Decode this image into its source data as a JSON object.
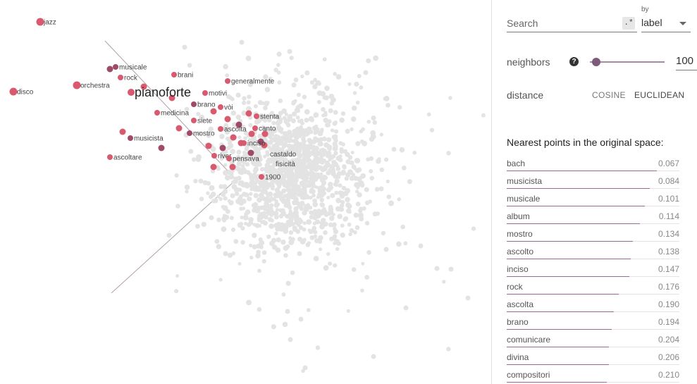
{
  "projection": {
    "highlight_label": "pianoforte",
    "labels": [
      "jazz",
      "musicale",
      "rock",
      "brani",
      "generalmente",
      "orchestra",
      "disco",
      "motivi",
      "brano",
      "vòi",
      "medicina",
      "siete",
      "stenta",
      "ascolta",
      "canto",
      "mostro",
      "musicista",
      "inciso",
      "castaldo",
      "fisicità",
      "river",
      "pensava",
      "ascoltare",
      "1900"
    ],
    "colors": {
      "neighbor": "#d9596e",
      "neighbor_dark": "#a04a6a",
      "background_point": "#e3e3e3",
      "axis_line": "#b0a0ae"
    }
  },
  "search": {
    "placeholder": "Search",
    "regex_label": ".*",
    "by_label": "by",
    "by_value": "label"
  },
  "neighbors": {
    "label": "neighbors",
    "help_icon": "help-icon",
    "value": "100",
    "slider_fraction": 0.05
  },
  "distance": {
    "label": "distance",
    "cosine": "COSINE",
    "euclidean": "EUCLIDEAN",
    "selected": "EUCLIDEAN"
  },
  "nearest": {
    "title": "Nearest points in the original space:",
    "items": [
      {
        "name": "bach",
        "value": "0.067"
      },
      {
        "name": "musicista",
        "value": "0.084"
      },
      {
        "name": "musicale",
        "value": "0.101"
      },
      {
        "name": "album",
        "value": "0.114"
      },
      {
        "name": "mostro",
        "value": "0.134"
      },
      {
        "name": "ascolto",
        "value": "0.138"
      },
      {
        "name": "inciso",
        "value": "0.147"
      },
      {
        "name": "rock",
        "value": "0.176"
      },
      {
        "name": "ascolta",
        "value": "0.190"
      },
      {
        "name": "brano",
        "value": "0.194"
      },
      {
        "name": "comunicare",
        "value": "0.204"
      },
      {
        "name": "divina",
        "value": "0.206"
      },
      {
        "name": "compositori",
        "value": "0.210"
      }
    ]
  }
}
